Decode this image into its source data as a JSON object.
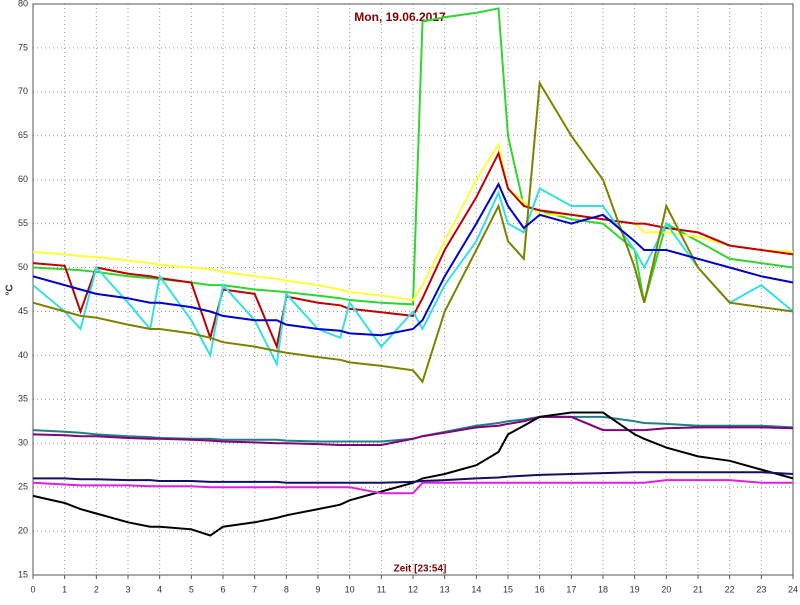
{
  "chart_data": {
    "type": "line",
    "title": "Mon, 19.06.2017",
    "xlabel": "Zeit [23:54]",
    "ylabel": "°C",
    "x": [
      0,
      1,
      1.5,
      2,
      3,
      3.7,
      4,
      5,
      5.6,
      6,
      7,
      7.7,
      8,
      9,
      9.7,
      10,
      11,
      12,
      12.3,
      13,
      14,
      14.7,
      15,
      15.5,
      16,
      17,
      18,
      19,
      19.3,
      20,
      21,
      22,
      23,
      24
    ],
    "xlim": [
      0,
      24
    ],
    "xticks": [
      0,
      1,
      2,
      3,
      4,
      5,
      6,
      7,
      8,
      9,
      10,
      11,
      12,
      13,
      14,
      15,
      16,
      17,
      18,
      19,
      20,
      21,
      22,
      23,
      24
    ],
    "ylim": [
      15,
      80
    ],
    "yticks": [
      15,
      20,
      25,
      30,
      35,
      40,
      45,
      50,
      55,
      60,
      65,
      70,
      75,
      80
    ],
    "grid": true,
    "series": [
      {
        "color": "#2fd62f",
        "values": [
          50,
          49.8,
          49.7,
          49.5,
          49,
          48.8,
          48.7,
          48.3,
          48,
          48,
          47.5,
          47.3,
          47.2,
          46.8,
          46.5,
          46.3,
          46,
          45.8,
          78,
          78.5,
          79,
          79.5,
          65,
          57,
          56.5,
          55.5,
          55,
          52,
          46,
          55,
          53,
          51,
          50.5,
          50
        ]
      },
      {
        "color": "#ffff33",
        "values": [
          51.8,
          51.5,
          51.3,
          51.2,
          50.8,
          50.5,
          50.3,
          50,
          49.8,
          49.5,
          49,
          48.7,
          48.5,
          48,
          47.5,
          47.2,
          46.8,
          46.3,
          48,
          53,
          60,
          64,
          59,
          57.5,
          56,
          56,
          55.5,
          55,
          54,
          54,
          53.5,
          52.5,
          52,
          51.8
        ]
      },
      {
        "color": "#c00000",
        "values": [
          50.5,
          50.2,
          45,
          50,
          49.3,
          49,
          48.8,
          48.3,
          42,
          47.5,
          47,
          41,
          46.7,
          46,
          45.7,
          45.3,
          44.9,
          44.5,
          46.5,
          52,
          58,
          63,
          59,
          57,
          56.5,
          56,
          55.5,
          55,
          55,
          54.5,
          54,
          52.5,
          52,
          51.5
        ]
      },
      {
        "color": "#33e0e8",
        "values": [
          48,
          45,
          43,
          50,
          46,
          43,
          49,
          44,
          40,
          48,
          44,
          39,
          47,
          43,
          42,
          46,
          41,
          45,
          43,
          48,
          53,
          58.5,
          55,
          54,
          59,
          57,
          57,
          52,
          50,
          55,
          50,
          46,
          48,
          45
        ]
      },
      {
        "color": "#808000",
        "values": [
          46,
          45,
          44.5,
          44.3,
          43.5,
          43,
          43,
          42.5,
          42,
          41.5,
          41,
          40.5,
          40.3,
          39.8,
          39.5,
          39.2,
          38.8,
          38.3,
          37,
          45,
          52,
          57,
          53,
          51,
          71,
          65,
          60,
          50,
          46,
          57,
          50,
          46,
          45.5,
          45
        ]
      },
      {
        "color": "#0000cc",
        "values": [
          49,
          48,
          47.5,
          47,
          46.5,
          46,
          46,
          45.5,
          45,
          44.5,
          44,
          44,
          43.5,
          43,
          42.8,
          42.5,
          42.3,
          43,
          44,
          49,
          55,
          59.5,
          57,
          54.5,
          56,
          55,
          56,
          53,
          52,
          52,
          51,
          50,
          49,
          48.3
        ]
      },
      {
        "color": "#208080",
        "values": [
          31.5,
          31.3,
          31.2,
          31,
          30.8,
          30.7,
          30.6,
          30.5,
          30.5,
          30.4,
          30.4,
          30.4,
          30.3,
          30.2,
          30.2,
          30.2,
          30.2,
          30.5,
          30.8,
          31.3,
          32,
          32.3,
          32.5,
          32.7,
          33,
          33,
          33,
          32.5,
          32.3,
          32.2,
          32,
          32,
          32,
          31.8
        ]
      },
      {
        "color": "#800080",
        "values": [
          31,
          30.9,
          30.8,
          30.8,
          30.6,
          30.5,
          30.5,
          30.4,
          30.3,
          30.2,
          30.1,
          30,
          30,
          29.9,
          29.8,
          29.8,
          29.8,
          30.5,
          30.8,
          31.2,
          31.8,
          32,
          32.2,
          32.5,
          33,
          33,
          31.5,
          31.5,
          31.5,
          31.7,
          31.8,
          31.8,
          31.8,
          31.7
        ]
      },
      {
        "color": "#000000",
        "values": [
          24,
          23.2,
          22.5,
          22,
          21,
          20.5,
          20.5,
          20.2,
          19.5,
          20.5,
          21,
          21.5,
          21.8,
          22.5,
          23,
          23.5,
          24.5,
          25.5,
          26,
          26.5,
          27.5,
          29,
          31,
          32,
          33,
          33.5,
          33.5,
          31,
          30.5,
          29.5,
          28.5,
          28,
          27,
          26
        ]
      },
      {
        "color": "#101060",
        "values": [
          26,
          26,
          25.9,
          25.9,
          25.8,
          25.8,
          25.7,
          25.7,
          25.6,
          25.6,
          25.6,
          25.6,
          25.5,
          25.5,
          25.5,
          25.5,
          25.5,
          25.6,
          25.7,
          25.8,
          26,
          26.1,
          26.2,
          26.3,
          26.4,
          26.5,
          26.6,
          26.7,
          26.7,
          26.7,
          26.7,
          26.7,
          26.7,
          26.5
        ]
      },
      {
        "color": "#e020e0",
        "values": [
          25.5,
          25.3,
          25.2,
          25.2,
          25.2,
          25.1,
          25.1,
          25.1,
          25,
          25,
          25,
          25,
          25,
          25,
          25,
          25,
          24.3,
          24.3,
          25.5,
          25.5,
          25.5,
          25.5,
          25.5,
          25.5,
          25.5,
          25.5,
          25.5,
          25.5,
          25.5,
          25.8,
          25.8,
          25.8,
          25.5,
          25.5
        ]
      }
    ]
  }
}
